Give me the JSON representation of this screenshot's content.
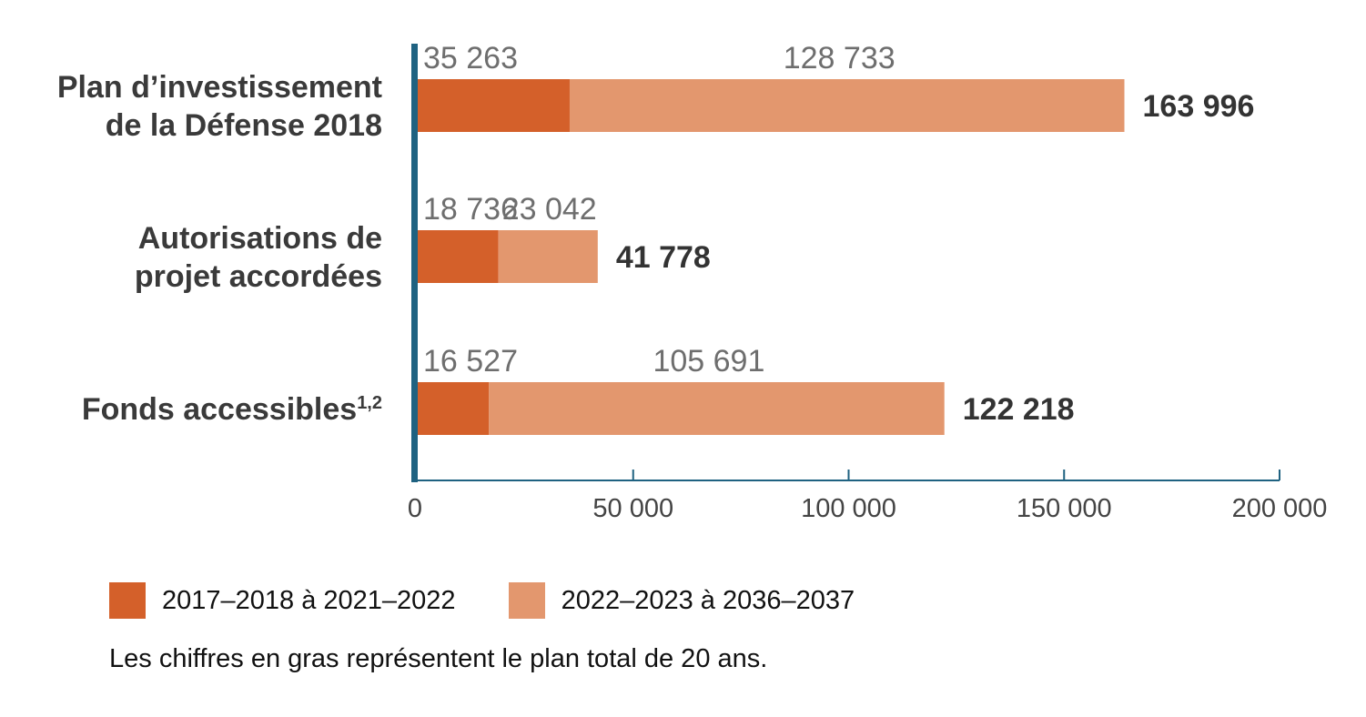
{
  "chart_data": {
    "type": "bar",
    "orientation": "horizontal",
    "stacked": true,
    "title": "",
    "xlabel": "",
    "ylabel": "",
    "categories": [
      [
        "Plan d’investissement",
        "de la Défense 2018"
      ],
      [
        "Autorisations de",
        "projet accordées"
      ],
      [
        "Fonds accessibles"
      ]
    ],
    "category_superscripts": [
      "",
      "",
      "1,2"
    ],
    "series": [
      {
        "name": "2017–2018 à 2021–2022",
        "color": "#d4602a",
        "values": [
          35263,
          18736,
          16527
        ],
        "labels": [
          "35 263",
          "18 736",
          "16 527"
        ]
      },
      {
        "name": "2022–2023 à 2036–2037",
        "color": "#e3976e",
        "values": [
          128733,
          23042,
          105691
        ],
        "labels": [
          "128 733",
          "23 042",
          "105 691"
        ]
      }
    ],
    "totals": [
      163996,
      41778,
      122218
    ],
    "total_labels": [
      "163 996",
      "41 778",
      "122 218"
    ],
    "xlim": [
      0,
      200000
    ],
    "xticks": [
      0,
      50000,
      100000,
      150000,
      200000
    ],
    "xtick_labels": [
      "0",
      "50 000",
      "100 000",
      "150 000",
      "200 000"
    ],
    "axis_color": "#1f6281",
    "grid": false,
    "legend_position": "bottom-left",
    "note": "Les chiffres en gras représentent le plan total de 20 ans."
  }
}
